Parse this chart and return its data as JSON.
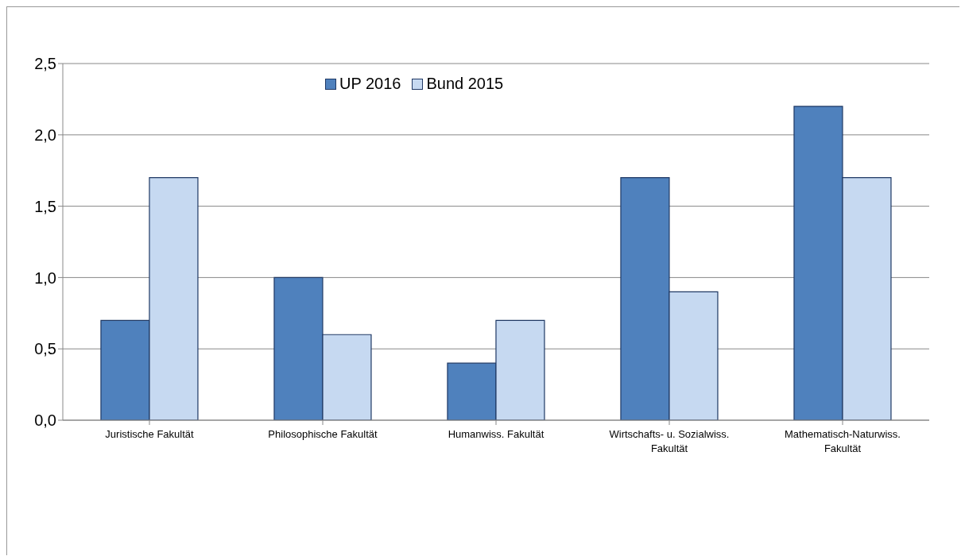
{
  "chart_data": {
    "type": "bar",
    "categories": [
      "Juristische Fakultät",
      "Philosophische Fakultät",
      "Humanwiss. Fakultät",
      "Wirtschafts- u. Sozialwiss. Fakultät",
      "Mathematisch-Naturwiss. Fakultät"
    ],
    "series": [
      {
        "name": "UP 2016",
        "color": "#4f81bd",
        "values": [
          0.7,
          1.0,
          0.4,
          1.7,
          2.2
        ]
      },
      {
        "name": "Bund 2015",
        "color": "#c6d9f1",
        "values": [
          1.7,
          0.6,
          0.7,
          0.9,
          1.7
        ]
      }
    ],
    "ylim": [
      0,
      2.5
    ],
    "yticks": [
      {
        "value": 0,
        "label": "0,0"
      },
      {
        "value": 0.5,
        "label": "0,5"
      },
      {
        "value": 1,
        "label": "1,0"
      },
      {
        "value": 1.5,
        "label": "1,5"
      },
      {
        "value": 2,
        "label": "2,0"
      },
      {
        "value": 2.5,
        "label": "2,5"
      }
    ],
    "grid": "y",
    "legend": "top"
  }
}
